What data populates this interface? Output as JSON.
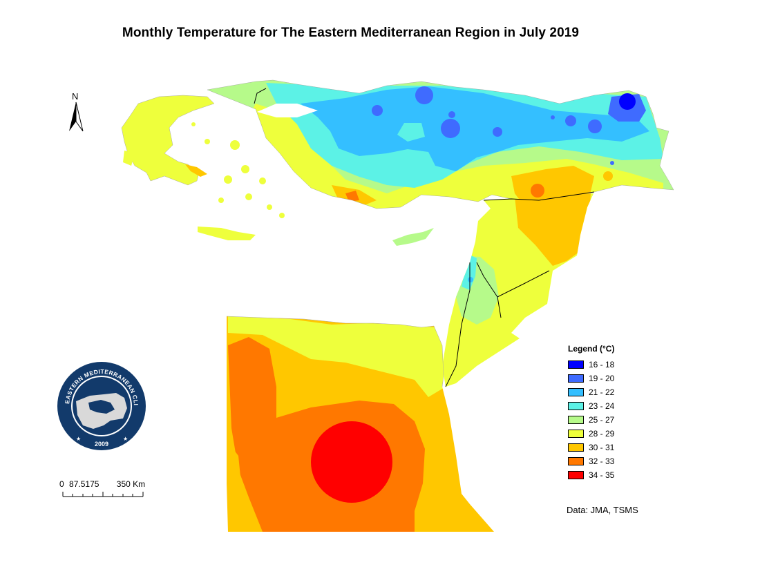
{
  "map": {
    "title": "Monthly Temperature  for The Eastern Mediterranean Region in July 2019",
    "north_label": "N",
    "legend": {
      "title": "Legend (°C)",
      "classes": [
        {
          "label": "16 - 18",
          "color": "#0000ff"
        },
        {
          "label": "19 - 20",
          "color": "#3f6bff"
        },
        {
          "label": "21 - 22",
          "color": "#34bfff"
        },
        {
          "label": "23 - 24",
          "color": "#5cf2e6"
        },
        {
          "label": "25 - 27",
          "color": "#b6fa8a"
        },
        {
          "label": "28 - 29",
          "color": "#eeff3c"
        },
        {
          "label": "30 - 31",
          "color": "#ffc700"
        },
        {
          "label": "32 - 33",
          "color": "#ff7800"
        },
        {
          "label": "34 - 35",
          "color": "#ff0000"
        }
      ]
    },
    "scale_bar": {
      "labels": [
        "0",
        "87.5",
        "175",
        "350"
      ],
      "unit": "Km"
    },
    "source": "Data: JMA, TSMS",
    "logo": {
      "ring_text": "EASTERN MEDITERRANEAN CLIMATE CENTRE",
      "year": "2009"
    }
  }
}
